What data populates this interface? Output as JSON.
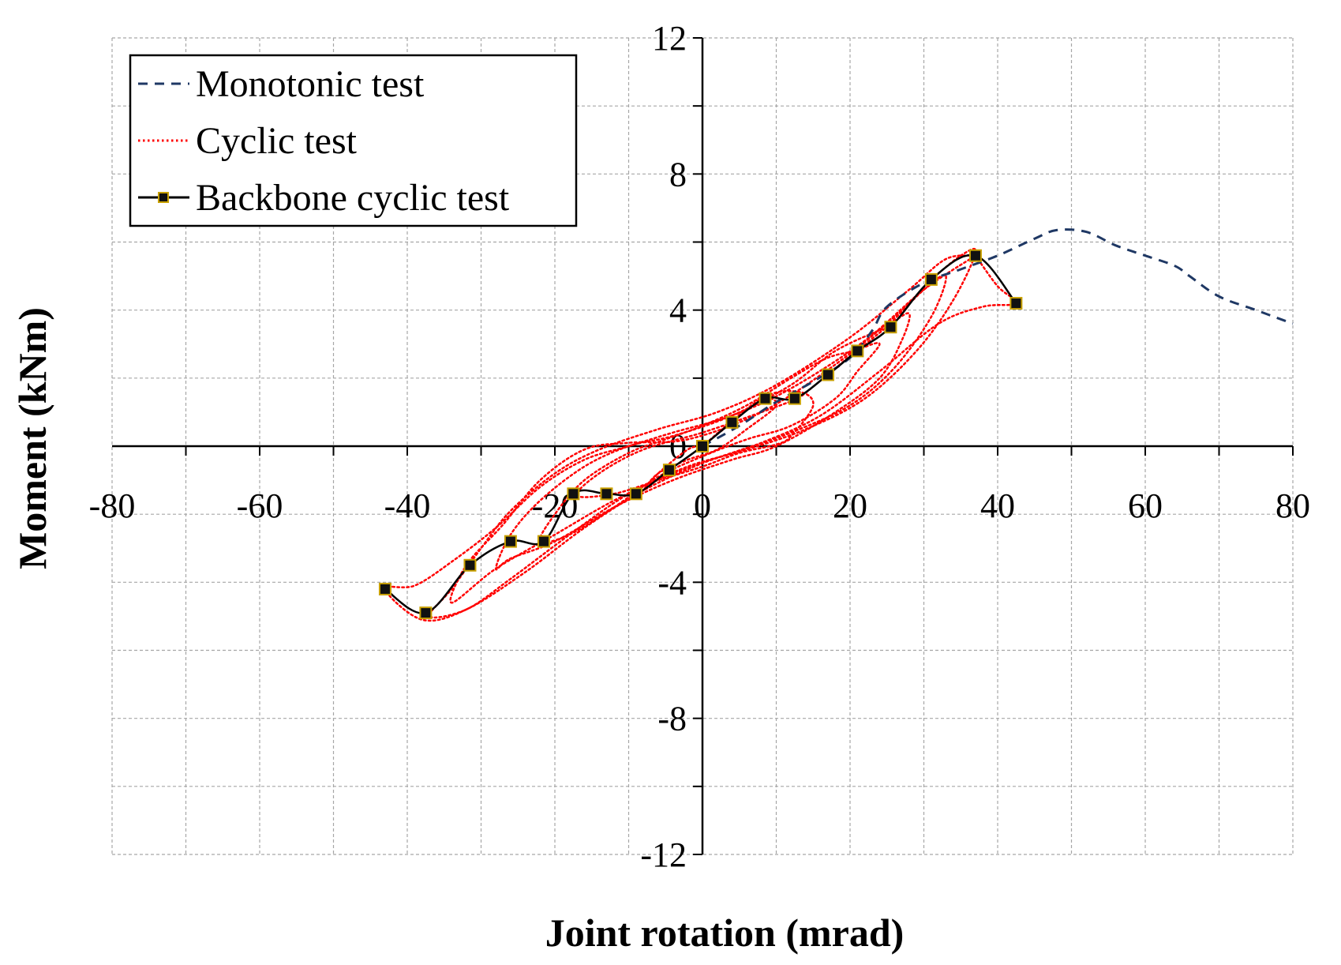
{
  "chart_data": {
    "type": "line",
    "xlabel": "Joint rotation (mrad)",
    "ylabel": "Moment (kNm)",
    "xlim": [
      -80,
      80
    ],
    "ylim": [
      -12,
      12
    ],
    "x_ticks": [
      -80,
      -60,
      -40,
      -20,
      0,
      20,
      40,
      60,
      80
    ],
    "y_ticks": [
      -12,
      -8,
      -4,
      0,
      4,
      8,
      12
    ],
    "grid": true,
    "legend_position": "top-left",
    "series": [
      {
        "name": "Monotonic test",
        "style": "dashed",
        "color": "#1f3864",
        "points": [
          [
            0,
            0
          ],
          [
            5,
            0.6
          ],
          [
            10,
            1.3
          ],
          [
            15,
            1.9
          ],
          [
            20,
            2.6
          ],
          [
            23,
            3.4
          ],
          [
            25,
            4.1
          ],
          [
            30,
            4.8
          ],
          [
            35,
            5.2
          ],
          [
            40,
            5.6
          ],
          [
            45,
            6.1
          ],
          [
            48,
            6.35
          ],
          [
            52,
            6.3
          ],
          [
            56,
            5.9
          ],
          [
            60,
            5.6
          ],
          [
            64,
            5.3
          ],
          [
            66,
            5.0
          ],
          [
            70,
            4.4
          ],
          [
            75,
            4.0
          ],
          [
            80,
            3.6
          ]
        ]
      },
      {
        "name": "Cyclic test",
        "style": "dotted",
        "color": "#ff0000",
        "loops": [
          [
            [
              0,
              0
            ],
            [
              4,
              0.7
            ],
            [
              8,
              1.4
            ],
            [
              10,
              1.2
            ],
            [
              6,
              0.5
            ],
            [
              2,
              -0.1
            ],
            [
              -2,
              -0.4
            ],
            [
              -6,
              -0.8
            ],
            [
              -8,
              -1.3
            ],
            [
              -6,
              -0.8
            ],
            [
              -2,
              -0.1
            ],
            [
              0,
              0
            ]
          ],
          [
            [
              0,
              0
            ],
            [
              8,
              1.4
            ],
            [
              13,
              1.6
            ],
            [
              15,
              1.2
            ],
            [
              12,
              0.3
            ],
            [
              10,
              0.05
            ],
            [
              5,
              -0.2
            ],
            [
              0,
              -0.6
            ],
            [
              -6,
              -1.0
            ],
            [
              -12,
              -1.4
            ],
            [
              -17,
              -1.45
            ],
            [
              -14,
              -0.8
            ],
            [
              -8,
              -0.1
            ],
            [
              0,
              0.4
            ],
            [
              8,
              1.0
            ],
            [
              13,
              1.4
            ]
          ],
          [
            [
              13,
              1.4
            ],
            [
              17,
              2.1
            ],
            [
              21,
              2.8
            ],
            [
              24,
              3.0
            ],
            [
              21,
              2.2
            ],
            [
              18,
              1.4
            ],
            [
              12,
              0.6
            ],
            [
              6,
              0.2
            ],
            [
              0,
              -0.3
            ],
            [
              -6,
              -0.9
            ],
            [
              -12,
              -1.8
            ],
            [
              -18,
              -2.6
            ],
            [
              -22,
              -2.8
            ],
            [
              -20,
              -2.0
            ],
            [
              -16,
              -1.0
            ],
            [
              -10,
              -0.2
            ],
            [
              -5,
              0.2
            ],
            [
              0,
              0.6
            ],
            [
              6,
              1.2
            ],
            [
              12,
              2.0
            ],
            [
              17,
              2.6
            ],
            [
              21,
              2.8
            ]
          ],
          [
            [
              21,
              2.8
            ],
            [
              25,
              3.5
            ],
            [
              28,
              3.9
            ],
            [
              27,
              3.1
            ],
            [
              24,
              2.0
            ],
            [
              18,
              1.0
            ],
            [
              10,
              0.0
            ],
            [
              4,
              -0.4
            ],
            [
              -4,
              -1.0
            ],
            [
              -12,
              -1.8
            ],
            [
              -20,
              -2.8
            ],
            [
              -26,
              -3.3
            ],
            [
              -28,
              -3.6
            ],
            [
              -26,
              -2.6
            ],
            [
              -22,
              -1.6
            ],
            [
              -16,
              -0.6
            ],
            [
              -10,
              0.0
            ],
            [
              -4,
              0.3
            ],
            [
              4,
              0.9
            ],
            [
              12,
              1.8
            ],
            [
              18,
              2.8
            ],
            [
              25,
              3.5
            ]
          ],
          [
            [
              25,
              3.5
            ],
            [
              30,
              4.6
            ],
            [
              33,
              5.0
            ],
            [
              31,
              3.8
            ],
            [
              26,
              2.3
            ],
            [
              20,
              1.2
            ],
            [
              12,
              0.4
            ],
            [
              4,
              -0.2
            ],
            [
              -4,
              -0.8
            ],
            [
              -12,
              -1.6
            ],
            [
              -20,
              -2.6
            ],
            [
              -28,
              -3.6
            ],
            [
              -34,
              -4.6
            ],
            [
              -32,
              -3.5
            ],
            [
              -27,
              -2.3
            ],
            [
              -22,
              -1.0
            ],
            [
              -16,
              -0.1
            ],
            [
              -10,
              0.1
            ],
            [
              -2,
              0.2
            ],
            [
              8,
              1.0
            ],
            [
              18,
              2.4
            ],
            [
              26,
              3.8
            ],
            [
              31,
              4.9
            ]
          ],
          [
            [
              31,
              4.9
            ],
            [
              35,
              5.6
            ],
            [
              37,
              5.7
            ],
            [
              34,
              4.3
            ],
            [
              29,
              2.8
            ],
            [
              22,
              1.4
            ],
            [
              14,
              0.5
            ],
            [
              6,
              -0.1
            ],
            [
              -2,
              -0.6
            ],
            [
              -10,
              -1.4
            ],
            [
              -18,
              -2.6
            ],
            [
              -26,
              -3.9
            ],
            [
              -32,
              -4.8
            ],
            [
              -37,
              -5.0
            ],
            [
              -34,
              -4.2
            ],
            [
              -30,
              -3.0
            ],
            [
              -26,
              -1.9
            ],
            [
              -20,
              -0.8
            ],
            [
              -14,
              -0.1
            ],
            [
              -6,
              0.5
            ],
            [
              2,
              1.0
            ],
            [
              10,
              1.8
            ],
            [
              20,
              3.2
            ],
            [
              28,
              4.6
            ],
            [
              33,
              5.5
            ],
            [
              37,
              5.6
            ]
          ],
          [
            [
              37,
              5.6
            ],
            [
              40,
              4.7
            ],
            [
              42.5,
              4.2
            ],
            [
              38,
              4.1
            ],
            [
              32,
              3.6
            ],
            [
              24,
              2.2
            ],
            [
              16,
              0.9
            ],
            [
              8,
              0.1
            ],
            [
              0,
              -0.5
            ],
            [
              -8,
              -1.3
            ],
            [
              -16,
              -2.4
            ],
            [
              -24,
              -3.7
            ],
            [
              -32,
              -4.8
            ],
            [
              -38,
              -5.1
            ],
            [
              -43,
              -4.2
            ],
            [
              -39,
              -4.1
            ],
            [
              -34,
              -3.4
            ],
            [
              -28,
              -2.4
            ],
            [
              -22,
              -1.2
            ],
            [
              -16,
              -0.4
            ],
            [
              -10,
              0.0
            ],
            [
              -4,
              0.4
            ],
            [
              4,
              0.9
            ],
            [
              12,
              1.7
            ],
            [
              22,
              3.1
            ],
            [
              30,
              4.6
            ],
            [
              37,
              5.6
            ]
          ]
        ]
      },
      {
        "name": "Backbone cyclic test",
        "style": "solid-square-markers",
        "color": "#000000",
        "marker_fill": "#111111",
        "marker_edge": "#c8a000",
        "points": [
          [
            -43,
            -4.2
          ],
          [
            -37.5,
            -4.9
          ],
          [
            -31.5,
            -3.5
          ],
          [
            -26,
            -2.8
          ],
          [
            -21.5,
            -2.8
          ],
          [
            -17.5,
            -1.4
          ],
          [
            -13,
            -1.4
          ],
          [
            -9,
            -1.4
          ],
          [
            -4.5,
            -0.7
          ],
          [
            0,
            0
          ],
          [
            4,
            0.7
          ],
          [
            8.5,
            1.4
          ],
          [
            12.5,
            1.4
          ],
          [
            17,
            2.1
          ],
          [
            21,
            2.8
          ],
          [
            25.5,
            3.5
          ],
          [
            31,
            4.9
          ],
          [
            37,
            5.6
          ],
          [
            42.5,
            4.2
          ]
        ]
      }
    ]
  },
  "legend": {
    "items": [
      {
        "label": "Monotonic test"
      },
      {
        "label": "Cyclic test"
      },
      {
        "label": "Backbone cyclic test"
      }
    ]
  }
}
